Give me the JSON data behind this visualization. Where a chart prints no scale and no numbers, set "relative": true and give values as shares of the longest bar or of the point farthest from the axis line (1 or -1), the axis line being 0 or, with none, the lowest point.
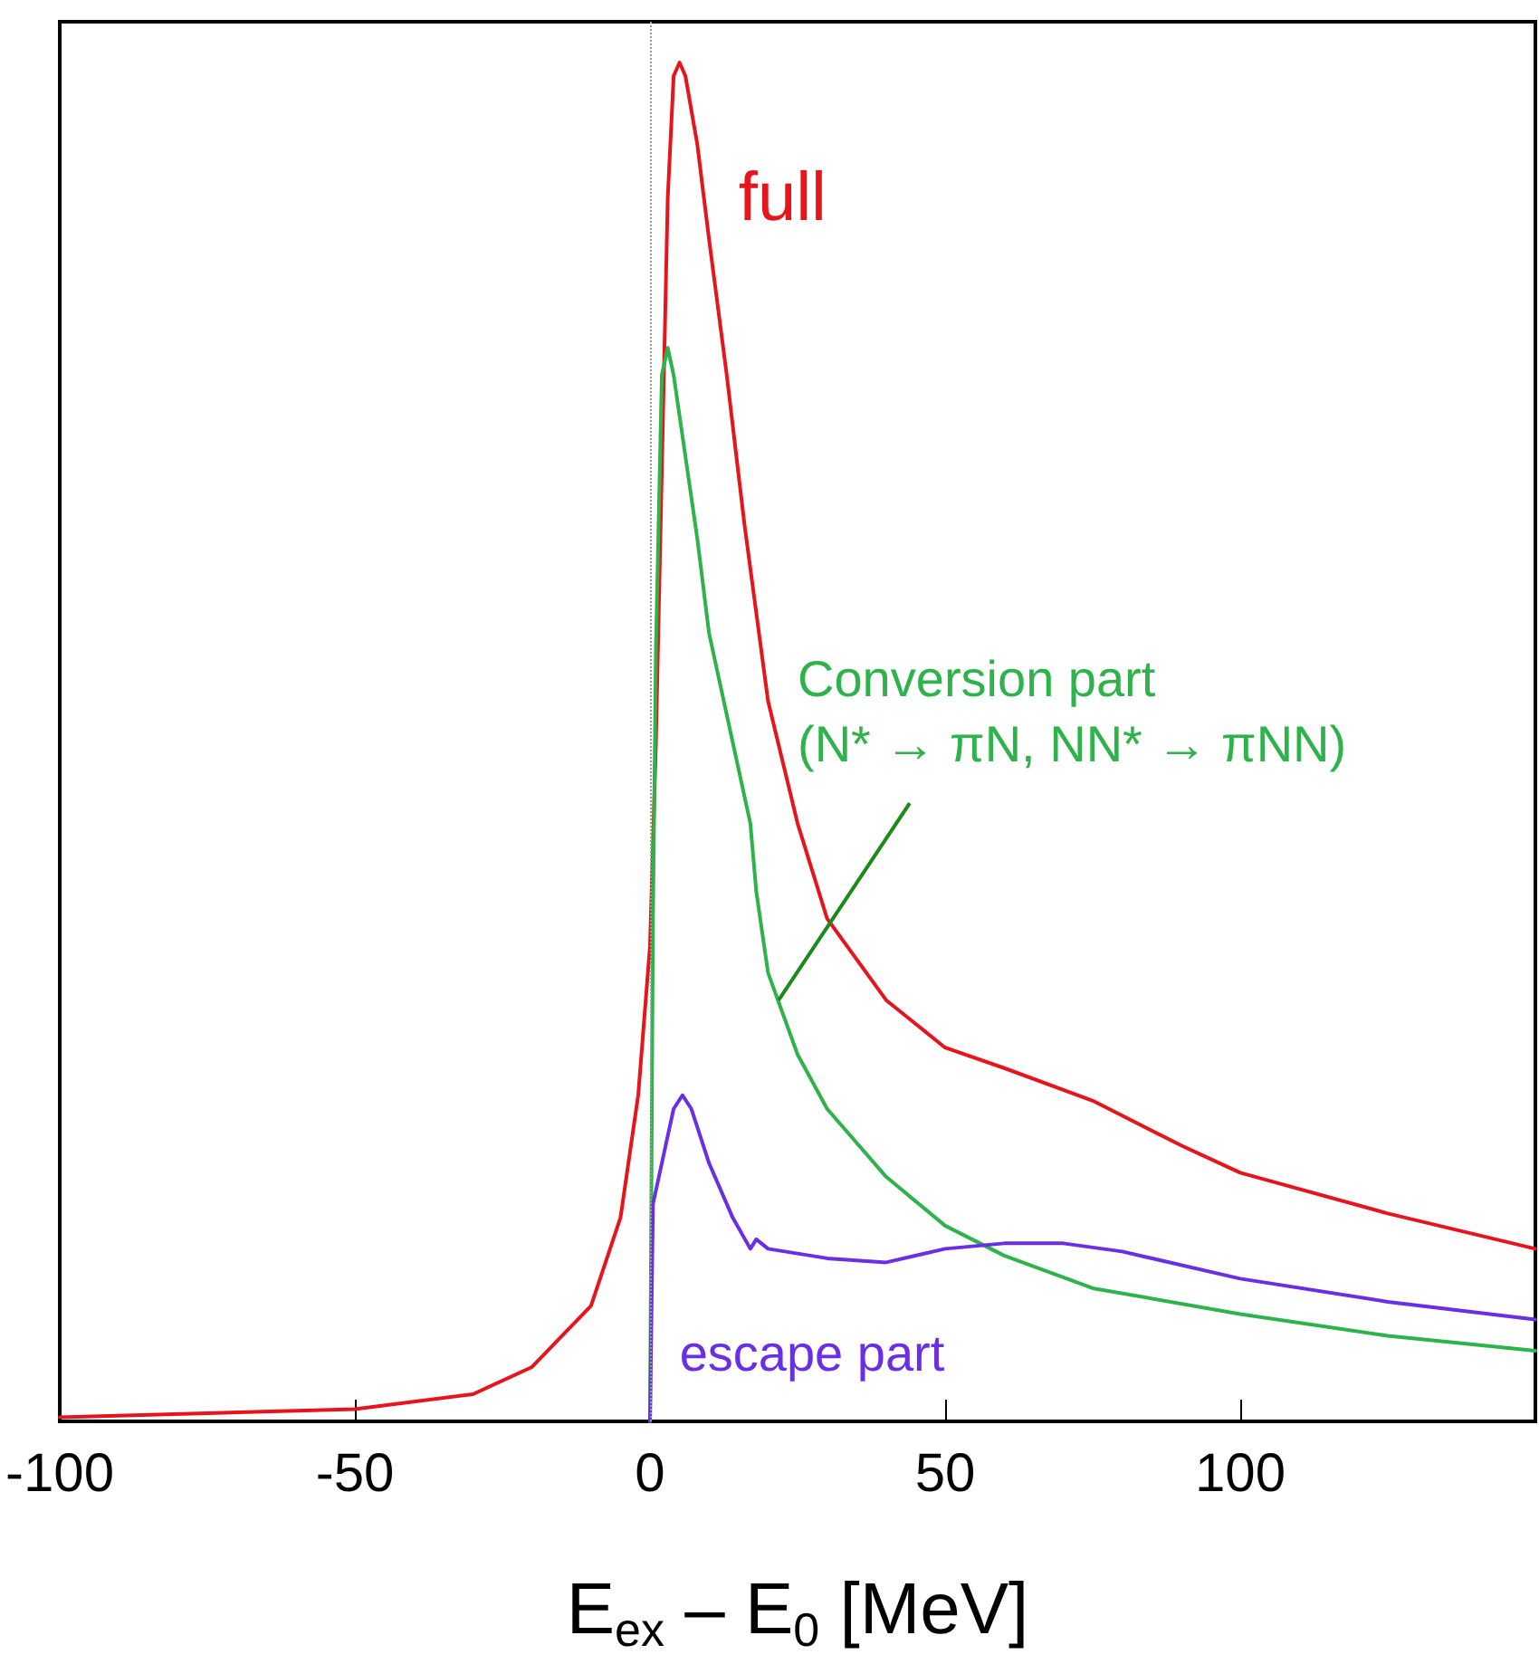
{
  "chart_data": {
    "type": "line",
    "relative": true,
    "xlabel": "E$_{ex}$ – E$_{0}$ [MeV]",
    "xlim": [
      -100,
      150
    ],
    "xticks": [
      -100,
      -50,
      0,
      50,
      100
    ],
    "marker": "none",
    "line_style": "solid",
    "series": [
      {
        "name": "full",
        "color": "#e8141c",
        "x": [
          -100,
          -50,
          -30,
          -20,
          -10,
          -5,
          -2,
          0,
          1,
          2,
          3,
          4,
          5,
          6,
          8,
          10,
          13,
          16,
          20,
          25,
          30,
          40,
          50,
          60,
          75,
          90,
          100,
          125,
          150
        ],
        "values": [
          0.003,
          0.009,
          0.02,
          0.04,
          0.085,
          0.15,
          0.24,
          0.35,
          0.5,
          0.7,
          0.9,
          0.99,
          1,
          0.99,
          0.94,
          0.87,
          0.77,
          0.66,
          0.53,
          0.44,
          0.37,
          0.31,
          0.275,
          0.26,
          0.236,
          0.203,
          0.183,
          0.153,
          0.127
        ]
      },
      {
        "name": "Conversion part\n(N* → πN, NN* → πNN)",
        "color": "#2db34a",
        "x": [
          0,
          0.5,
          1,
          2,
          3,
          4,
          6,
          8,
          10,
          14,
          17,
          18,
          20,
          25,
          30,
          40,
          50,
          60,
          75,
          100,
          125,
          150
        ],
        "values": [
          0,
          0.37,
          0.57,
          0.77,
          0.79,
          0.77,
          0.71,
          0.65,
          0.58,
          0.5,
          0.44,
          0.39,
          0.33,
          0.27,
          0.23,
          0.18,
          0.144,
          0.122,
          0.098,
          0.079,
          0.063,
          0.052
        ]
      },
      {
        "name": "escape part",
        "color": "#6a2ee6",
        "x": [
          0,
          0.5,
          2,
          4,
          5.5,
          7,
          10,
          14,
          17,
          18,
          20,
          30,
          40,
          50,
          60,
          70,
          80,
          100,
          125,
          150
        ],
        "values": [
          0,
          0.16,
          0.19,
          0.23,
          0.24,
          0.23,
          0.19,
          0.15,
          0.127,
          0.134,
          0.127,
          0.12,
          0.117,
          0.127,
          0.131,
          0.131,
          0.125,
          0.105,
          0.088,
          0.075
        ]
      }
    ],
    "ref_lines": [
      {
        "axis": "x",
        "value": 0,
        "color": "#999999",
        "line_style": "dotted"
      }
    ]
  }
}
